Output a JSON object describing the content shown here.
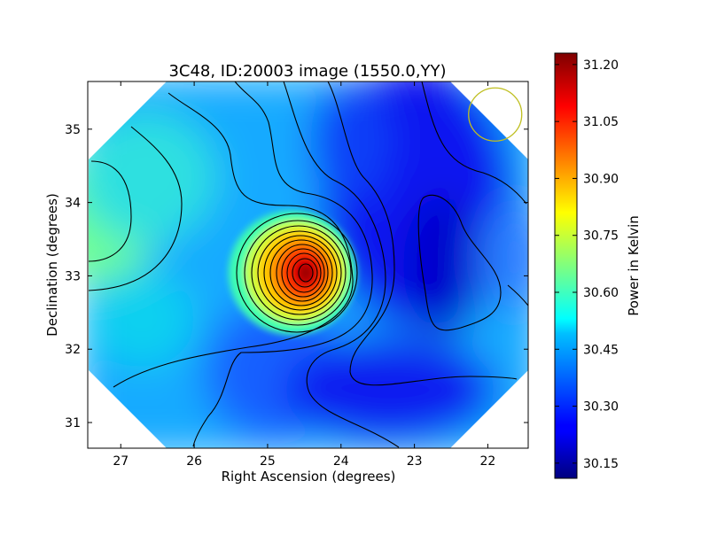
{
  "chart_data": {
    "type": "heatmap",
    "title": "3C48, ID:20003 image (1550.0,YY)",
    "xlabel": "Right Ascension (degrees)",
    "ylabel": "Declination (degrees)",
    "colorbar_label": "Power in Kelvin",
    "colormap": "jet",
    "xlim": [
      27.45,
      21.45
    ],
    "ylim": [
      30.65,
      35.65
    ],
    "x_ticks": [
      27,
      26,
      25,
      24,
      23,
      22
    ],
    "y_ticks": [
      31,
      32,
      33,
      34,
      35
    ],
    "colorbar_range": [
      30.11,
      31.23
    ],
    "colorbar_ticks": [
      "30.15",
      "30.30",
      "30.45",
      "30.60",
      "30.75",
      "30.90",
      "31.05",
      "31.20"
    ],
    "colorbar_tick_values": [
      30.15,
      30.3,
      30.45,
      30.6,
      30.75,
      30.9,
      31.05,
      31.2
    ],
    "peak": {
      "ra": 24.45,
      "dec": 33.05,
      "value": 31.22
    },
    "minimum": {
      "ra": 22.55,
      "dec": 33.0,
      "value": 30.15
    },
    "beam_circle": {
      "ra": 21.9,
      "dec": 35.2,
      "color": "#bfbf20"
    }
  }
}
